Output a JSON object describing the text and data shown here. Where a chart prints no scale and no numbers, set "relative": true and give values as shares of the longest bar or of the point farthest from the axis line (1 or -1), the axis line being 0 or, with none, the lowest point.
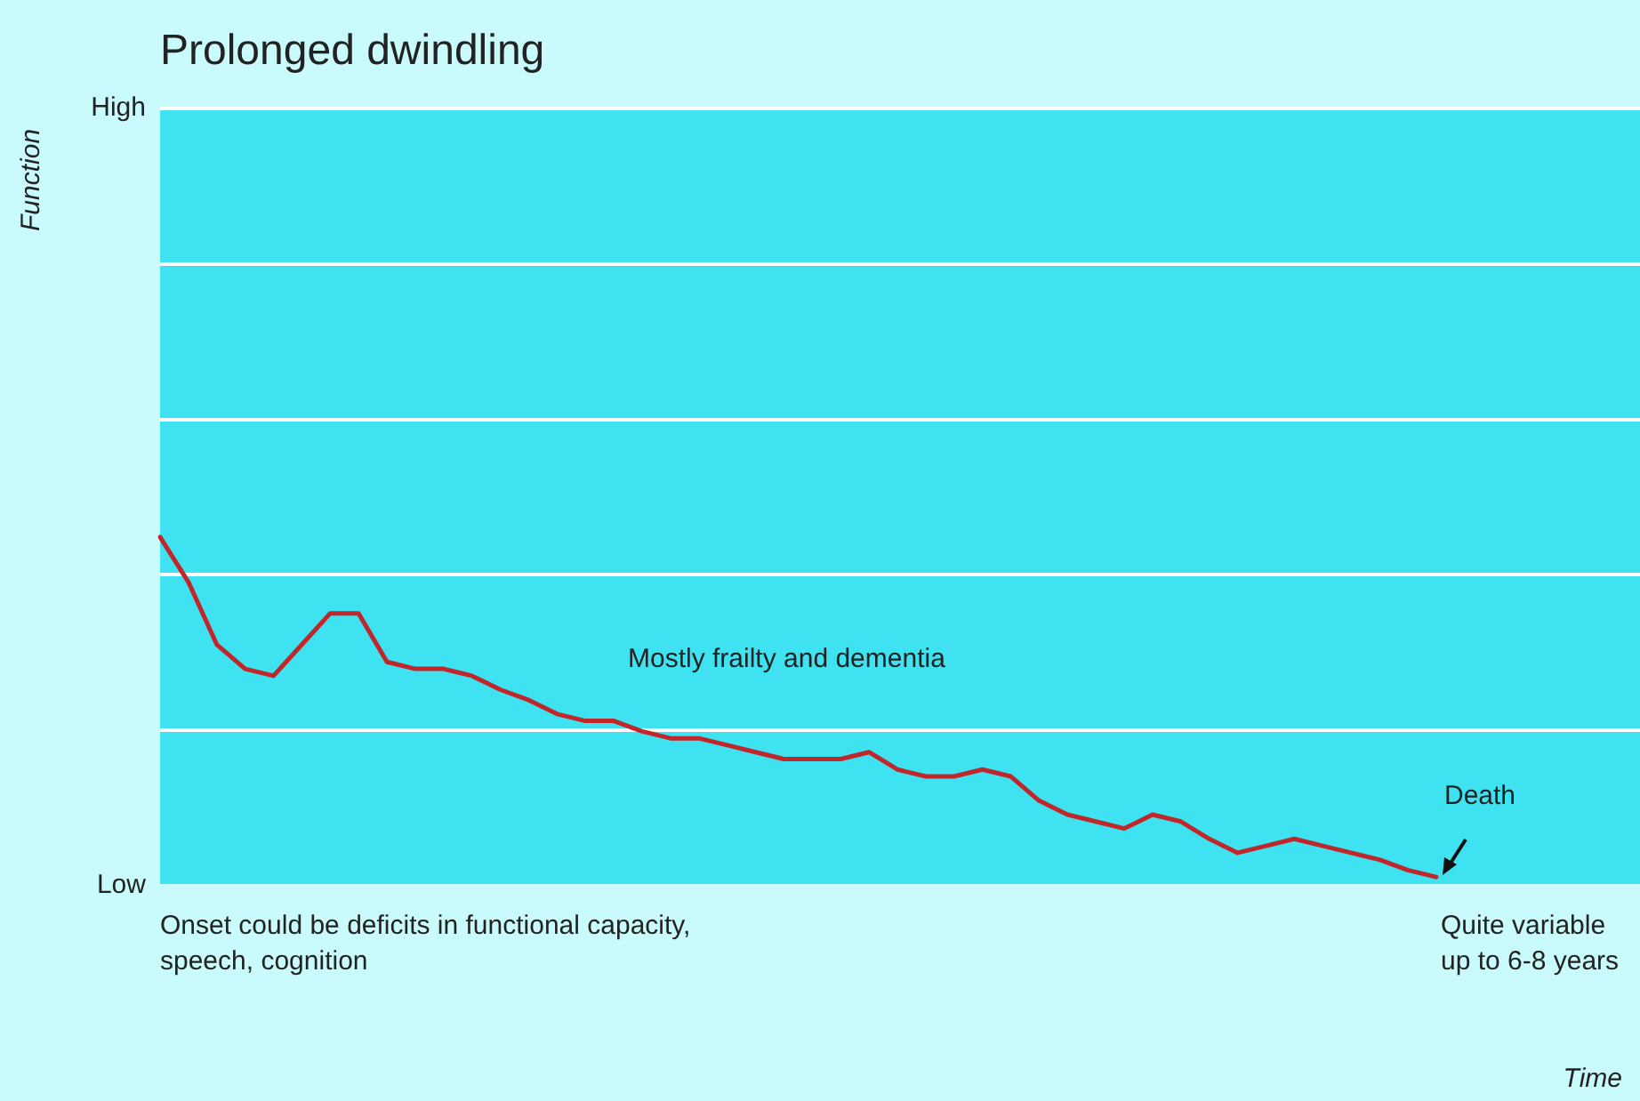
{
  "chart_data": {
    "type": "line",
    "title": "Prolonged dwindling",
    "categories": [
      null,
      null,
      null,
      null,
      null,
      null,
      null,
      null,
      null,
      null,
      null,
      null,
      null,
      null,
      null,
      null,
      null,
      null,
      null,
      null,
      null,
      null,
      null,
      null,
      null,
      null,
      null,
      null,
      null,
      null,
      null,
      null,
      null,
      null,
      null,
      null,
      null,
      null,
      null,
      null,
      null,
      null,
      null,
      null,
      null,
      null,
      null,
      null,
      null,
      null,
      null,
      null,
      null
    ],
    "series": [
      {
        "color": "#c0262a",
        "values": [
          1,
          0.87,
          0.69,
          0.62,
          0.6,
          0.69,
          0.78,
          0.78,
          0.64,
          0.62,
          0.62,
          0.6,
          0.56,
          0.53,
          0.49,
          0.47,
          0.47,
          0.44,
          0.42,
          0.42,
          0.4,
          0.38,
          0.36,
          0.36,
          0.36,
          0.38,
          0.33,
          0.31,
          0.31,
          0.33,
          0.31,
          0.24,
          0.2,
          0.18,
          0.16,
          0.2,
          0.18,
          0.13,
          0.09,
          0.11,
          0.13,
          0.11,
          0.09,
          0.07,
          0.04,
          0.02,
          null,
          null,
          null,
          null,
          null,
          null,
          null
        ]
      }
    ],
    "relative": true,
    "legend": false,
    "marker": "none",
    "line_style": "solid",
    "annotations": [
      "Mostly frailty and dementia",
      "Onset could be deficits in functional capacity, speech, cognition",
      "Death",
      "Quite variable up to 6-8 years",
      "High",
      "Low",
      "Function",
      "Time"
    ]
  }
}
